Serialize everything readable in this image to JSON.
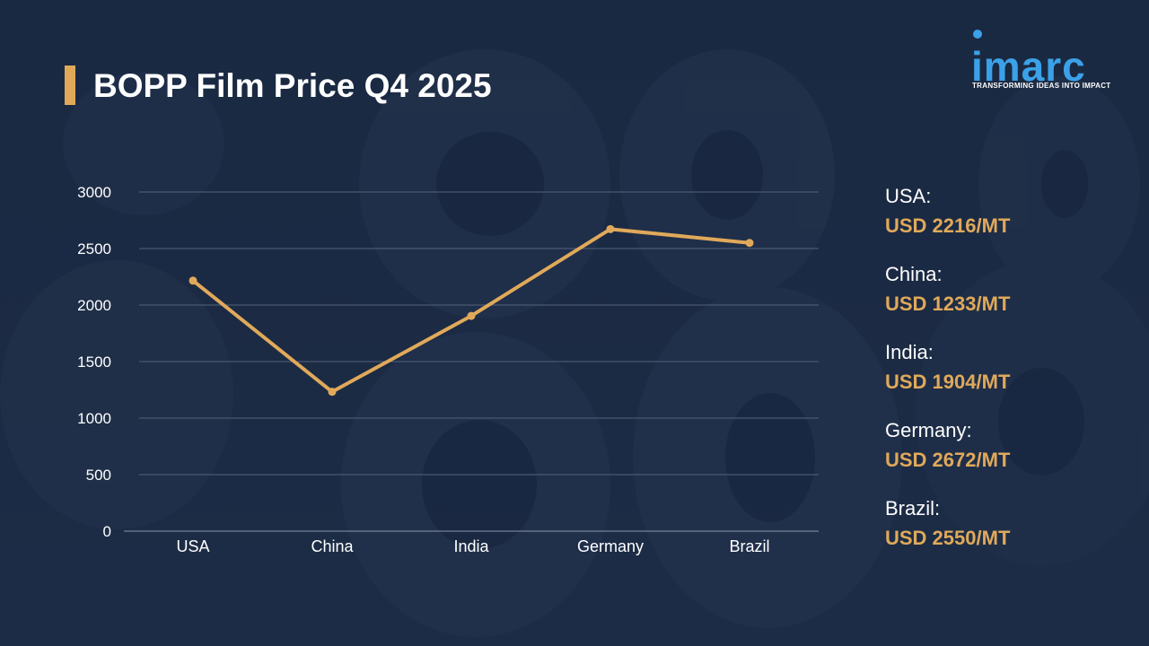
{
  "title": "BOPP Film Price Q4 2025",
  "logo": {
    "word": "imarc",
    "tagline": "TRANSFORMING IDEAS INTO IMPACT"
  },
  "colors": {
    "background": "#1c2b45",
    "accent": "#e0a95a",
    "logo": "#3ba1e8"
  },
  "legend": [
    {
      "name": "USA:",
      "price": "USD 2216/MT"
    },
    {
      "name": "China:",
      "price": "USD 1233/MT"
    },
    {
      "name": "India:",
      "price": "USD 1904/MT"
    },
    {
      "name": "Germany:",
      "price": "USD 2672/MT"
    },
    {
      "name": "Brazil:",
      "price": "USD 2550/MT"
    }
  ],
  "chart_data": {
    "type": "line",
    "categories": [
      "USA",
      "China",
      "India",
      "Germany",
      "Brazil"
    ],
    "series": [
      {
        "values": [
          2216,
          1233,
          1904,
          2672,
          2550
        ]
      }
    ],
    "yticks": [
      0,
      500,
      1000,
      1500,
      2000,
      2500,
      3000
    ],
    "ylim": [
      0,
      3000
    ],
    "grid": true,
    "legend": "right",
    "line_color": "#e0a95a"
  }
}
